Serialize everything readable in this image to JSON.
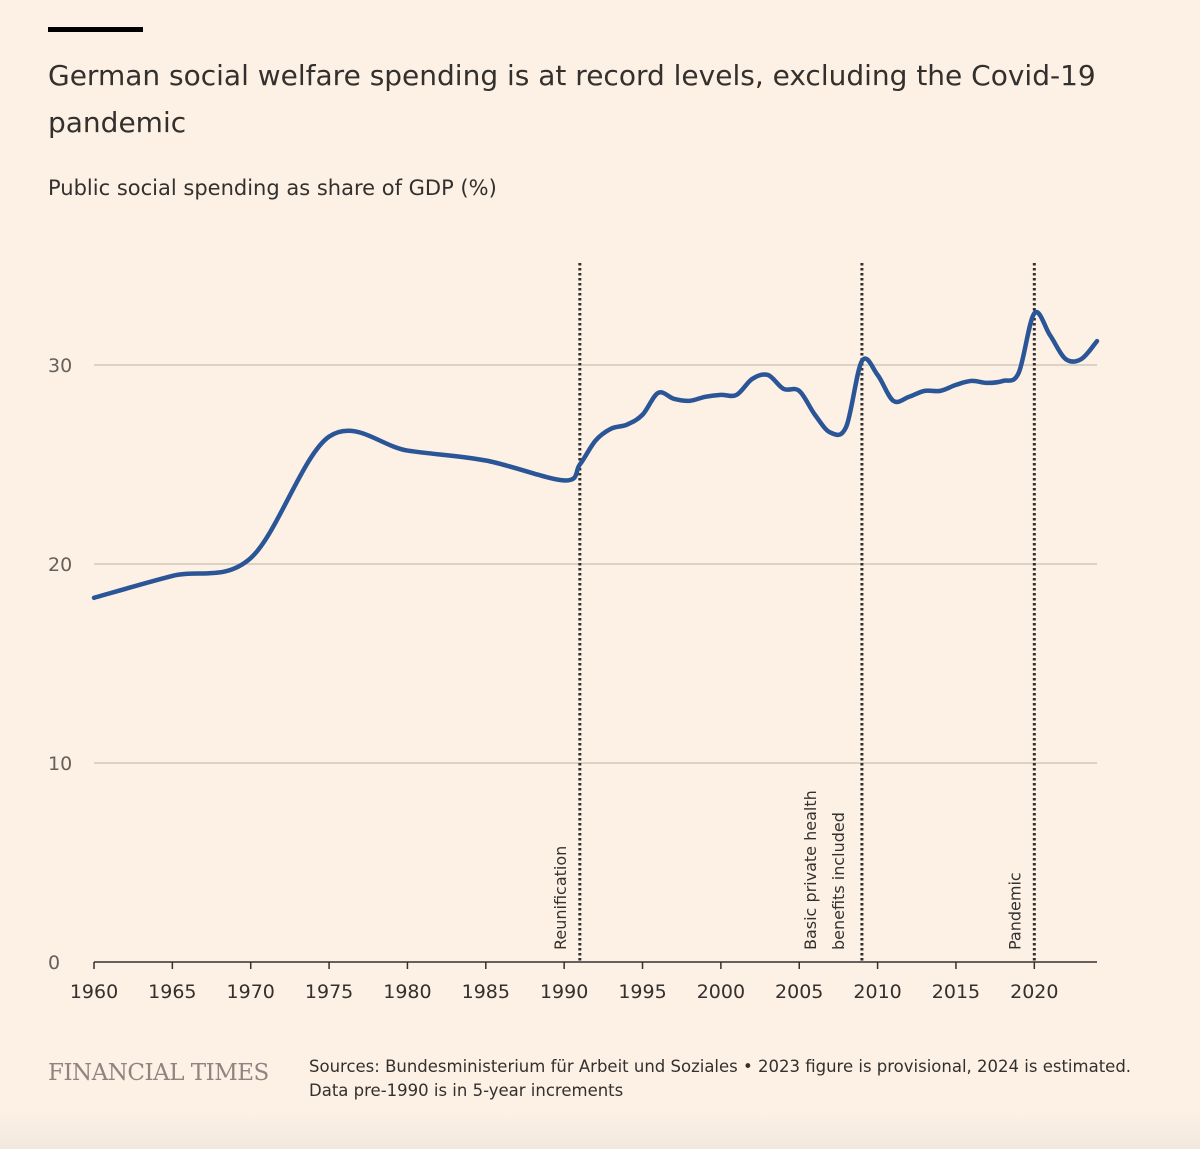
{
  "header": {
    "title": "German social welfare spending is at record levels, excluding the Covid-19 pandemic",
    "subtitle": "Public social spending as share of GDP (%)"
  },
  "footer": {
    "logo": "FINANCIAL TIMES",
    "source_line1": "Sources: Bundesministerium für Arbeit und Soziales • 2023 figure is provisional, 2024 is estimated.",
    "source_line2": "Data pre-1990 is in 5-year increments"
  },
  "chart_data": {
    "type": "line",
    "title": "German social welfare spending is at record levels, excluding the Covid-19 pandemic",
    "ylabel": "Public social spending as share of GDP (%)",
    "xlim": [
      1960,
      2024
    ],
    "ylim": [
      0,
      35
    ],
    "grid": true,
    "line_color": "#2a5597",
    "x_ticks": [
      "1960",
      "1965",
      "1970",
      "1975",
      "1980",
      "1985",
      "1990",
      "1995",
      "2000",
      "2005",
      "2010",
      "2015",
      "2020"
    ],
    "y_ticks": [
      "0",
      "10",
      "20",
      "30"
    ],
    "series": [
      {
        "x": [
          1960,
          1965,
          1970,
          1975,
          1980,
          1985,
          1990,
          1991,
          1992,
          1993,
          1994,
          1995,
          1996,
          1997,
          1998,
          1999,
          2000,
          2001,
          2002,
          2003,
          2004,
          2005,
          2006,
          2007,
          2008,
          2009,
          2010,
          2011,
          2012,
          2013,
          2014,
          2015,
          2016,
          2017,
          2018,
          2019,
          2020,
          2021,
          2022,
          2023,
          2024
        ],
        "y": [
          18.3,
          19.4,
          20.3,
          26.4,
          25.7,
          25.2,
          24.2,
          25.0,
          26.2,
          26.8,
          27.0,
          27.5,
          28.6,
          28.3,
          28.2,
          28.4,
          28.5,
          28.5,
          29.3,
          29.5,
          28.8,
          28.7,
          27.5,
          26.6,
          26.9,
          30.2,
          29.5,
          28.2,
          28.4,
          28.7,
          28.7,
          29.0,
          29.2,
          29.1,
          29.2,
          29.6,
          32.6,
          31.5,
          30.3,
          30.3,
          31.2
        ]
      }
    ],
    "annotations": [
      {
        "x": 1991,
        "label": "Reunification"
      },
      {
        "x": 2009,
        "label": "Basic private health benefits included"
      },
      {
        "x": 2020,
        "label": "Pandemic"
      }
    ]
  }
}
